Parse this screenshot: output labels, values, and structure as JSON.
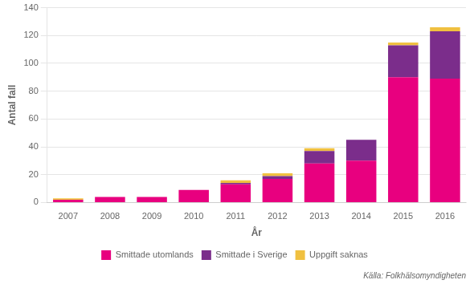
{
  "chart_data": {
    "type": "bar",
    "stacked": true,
    "categories": [
      "2007",
      "2008",
      "2009",
      "2010",
      "2011",
      "2012",
      "2013",
      "2014",
      "2015",
      "2016"
    ],
    "series": [
      {
        "name": "Smittade utomlands",
        "color": "#e8007f",
        "values": [
          2,
          4,
          4,
          9,
          13,
          17,
          28,
          30,
          90,
          89
        ]
      },
      {
        "name": "Smittade i Sverige",
        "color": "#7b2d8b",
        "values": [
          0,
          0,
          0,
          0,
          1,
          2,
          9,
          15,
          23,
          34
        ]
      },
      {
        "name": "Uppgift saknas",
        "color": "#f0c040",
        "values": [
          1,
          0,
          0,
          0,
          2,
          2,
          2,
          0,
          2,
          3
        ]
      }
    ],
    "xlabel": "År",
    "ylabel": "Antal fall",
    "ylim": [
      0,
      140
    ],
    "yticks": [
      0,
      20,
      40,
      60,
      80,
      100,
      120,
      140
    ],
    "grid": true,
    "legend": "bottom",
    "annotation": "Källa: Folkhälsomyndigheten"
  }
}
